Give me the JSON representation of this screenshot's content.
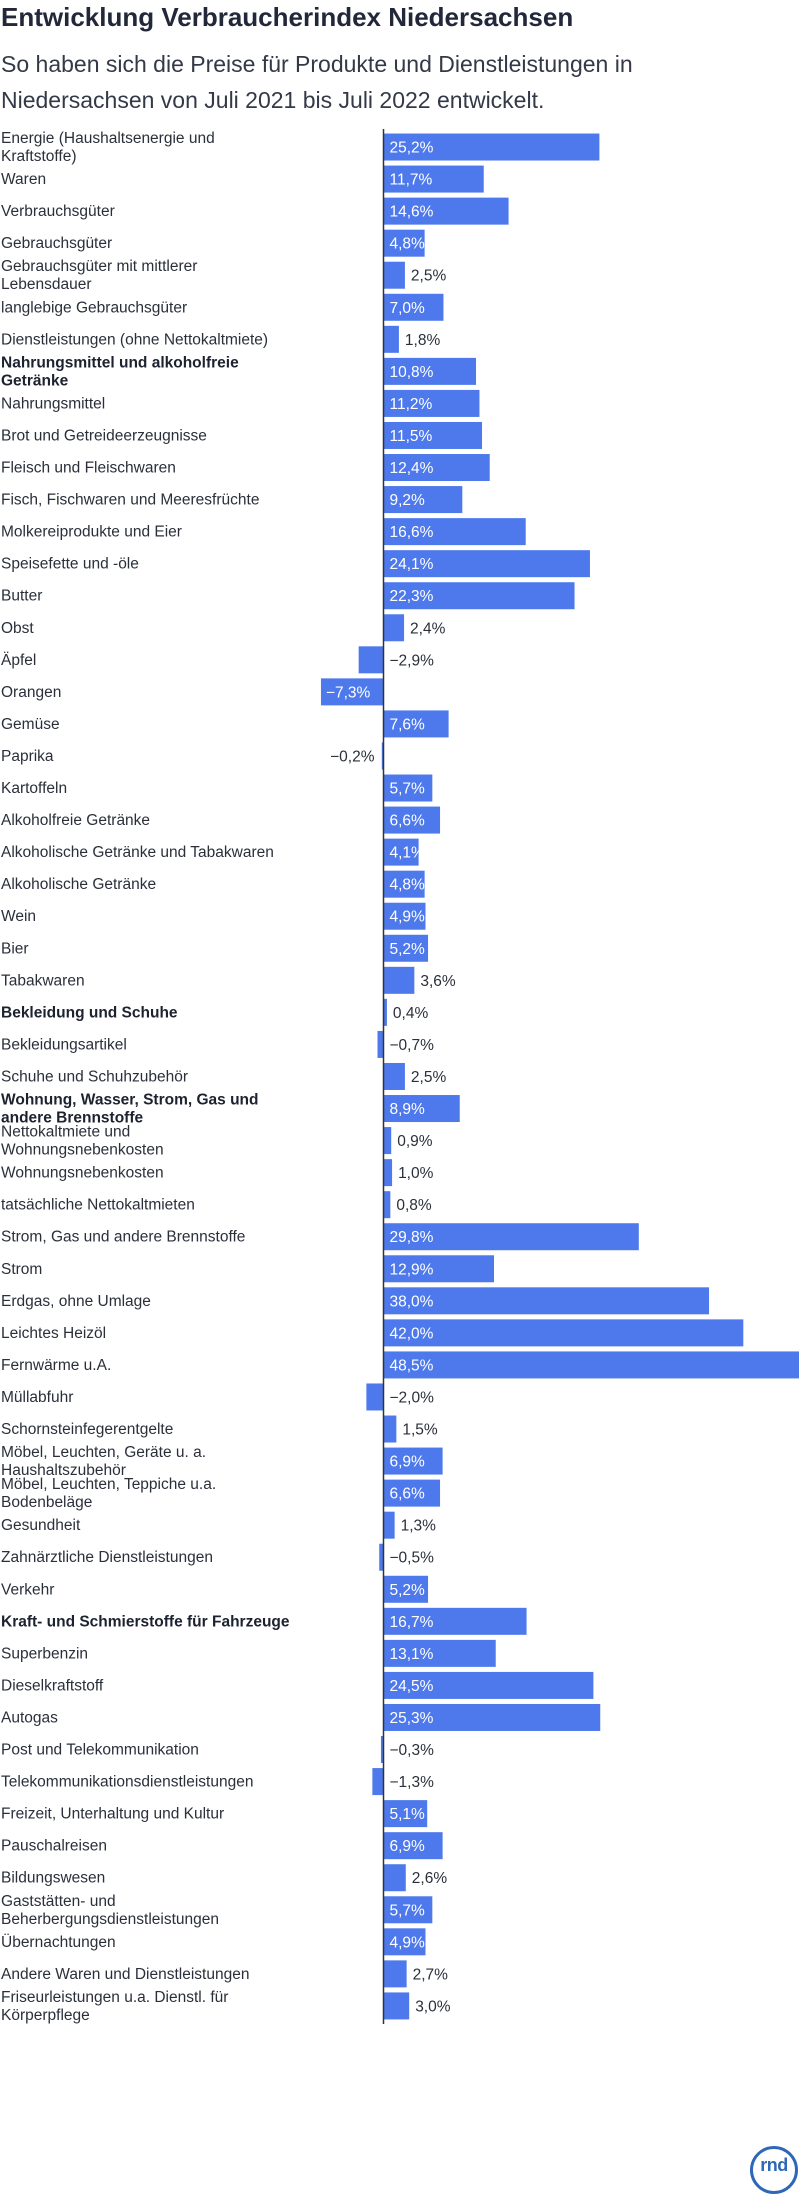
{
  "title": "Entwicklung Verbraucherindex Niedersachsen",
  "subtitle": "So haben sich die Preise für Produkte und Dienstleistungen in Niedersachsen von Juli 2021 bis Juli 2022 entwickelt.",
  "logo": "rnd",
  "colors": {
    "bar": "#4d79ec",
    "axis": "#333333",
    "logo": "#2f67b8"
  },
  "chart_data": {
    "type": "bar",
    "orientation": "horizontal",
    "unit": "%",
    "xlim": [
      -9.5,
      48.5
    ],
    "categories": [
      {
        "label": [
          "Energie (Haushaltsenergie und",
          "Kraftstoffe)"
        ],
        "value": 25.2,
        "display": "25,2%"
      },
      {
        "label": [
          "Waren"
        ],
        "value": 11.7,
        "display": "11,7%"
      },
      {
        "label": [
          "Verbrauchsgüter"
        ],
        "value": 14.6,
        "display": "14,6%"
      },
      {
        "label": [
          "Gebrauchsgüter"
        ],
        "value": 4.8,
        "display": "4,8%"
      },
      {
        "label": [
          "Gebrauchsgüter mit mittlerer",
          "Lebensdauer"
        ],
        "value": 2.5,
        "display": "2,5%"
      },
      {
        "label": [
          "langlebige Gebrauchsgüter"
        ],
        "value": 7.0,
        "display": "7,0%"
      },
      {
        "label": [
          "Dienstleistungen (ohne Nettokaltmiete)"
        ],
        "value": 1.8,
        "display": "1,8%"
      },
      {
        "label": [
          "Nahrungsmittel und alkoholfreie",
          "Getränke"
        ],
        "value": 10.8,
        "display": "10,8%",
        "bold": true
      },
      {
        "label": [
          "Nahrungsmittel"
        ],
        "value": 11.2,
        "display": "11,2%"
      },
      {
        "label": [
          "Brot und Getreideerzeugnisse"
        ],
        "value": 11.5,
        "display": "11,5%"
      },
      {
        "label": [
          "Fleisch und Fleischwaren"
        ],
        "value": 12.4,
        "display": "12,4%"
      },
      {
        "label": [
          "Fisch, Fischwaren und Meeresfrüchte"
        ],
        "value": 9.2,
        "display": "9,2%"
      },
      {
        "label": [
          "Molkereiprodukte und Eier"
        ],
        "value": 16.6,
        "display": "16,6%"
      },
      {
        "label": [
          "Speisefette und -öle"
        ],
        "value": 24.1,
        "display": "24,1%"
      },
      {
        "label": [
          "Butter"
        ],
        "value": 22.3,
        "display": "22,3%"
      },
      {
        "label": [
          "Obst"
        ],
        "value": 2.4,
        "display": "2,4%"
      },
      {
        "label": [
          "Äpfel"
        ],
        "value": -2.9,
        "display": "−2,9%"
      },
      {
        "label": [
          "Orangen"
        ],
        "value": -7.3,
        "display": "−7,3%"
      },
      {
        "label": [
          "Gemüse"
        ],
        "value": 7.6,
        "display": "7,6%"
      },
      {
        "label": [
          "Paprika"
        ],
        "value": -0.2,
        "display": "−0,2%"
      },
      {
        "label": [
          "Kartoffeln"
        ],
        "value": 5.7,
        "display": "5,7%"
      },
      {
        "label": [
          "Alkoholfreie Getränke"
        ],
        "value": 6.6,
        "display": "6,6%"
      },
      {
        "label": [
          "Alkoholische Getränke und Tabakwaren"
        ],
        "value": 4.1,
        "display": "4,1%"
      },
      {
        "label": [
          "Alkoholische Getränke"
        ],
        "value": 4.8,
        "display": "4,8%"
      },
      {
        "label": [
          "Wein"
        ],
        "value": 4.9,
        "display": "4,9%"
      },
      {
        "label": [
          "Bier"
        ],
        "value": 5.2,
        "display": "5,2%"
      },
      {
        "label": [
          "Tabakwaren"
        ],
        "value": 3.6,
        "display": "3,6%"
      },
      {
        "label": [
          "Bekleidung und Schuhe"
        ],
        "value": 0.4,
        "display": "0,4%",
        "bold": true
      },
      {
        "label": [
          "Bekleidungsartikel"
        ],
        "value": -0.7,
        "display": "−0,7%"
      },
      {
        "label": [
          "Schuhe und Schuhzubehör"
        ],
        "value": 2.5,
        "display": "2,5%"
      },
      {
        "label": [
          "Wohnung, Wasser, Strom, Gas und",
          "andere Brennstoffe"
        ],
        "value": 8.9,
        "display": "8,9%",
        "bold": true
      },
      {
        "label": [
          "Nettokaltmiete und",
          "Wohnungsnebenkosten"
        ],
        "value": 0.9,
        "display": "0,9%"
      },
      {
        "label": [
          "Wohnungsnebenkosten"
        ],
        "value": 1.0,
        "display": "1,0%"
      },
      {
        "label": [
          "tatsächliche Nettokaltmieten"
        ],
        "value": 0.8,
        "display": "0,8%"
      },
      {
        "label": [
          "Strom, Gas und andere Brennstoffe"
        ],
        "value": 29.8,
        "display": "29,8%"
      },
      {
        "label": [
          "Strom"
        ],
        "value": 12.9,
        "display": "12,9%"
      },
      {
        "label": [
          "Erdgas, ohne Umlage"
        ],
        "value": 38.0,
        "display": "38,0%"
      },
      {
        "label": [
          "Leichtes Heizöl"
        ],
        "value": 42.0,
        "display": "42,0%"
      },
      {
        "label": [
          "Fernwärme u.A."
        ],
        "value": 48.5,
        "display": "48,5%"
      },
      {
        "label": [
          "Müllabfuhr"
        ],
        "value": -2.0,
        "display": "−2,0%"
      },
      {
        "label": [
          "Schornsteinfegerentgelte"
        ],
        "value": 1.5,
        "display": "1,5%"
      },
      {
        "label": [
          "Möbel, Leuchten, Geräte u. a.",
          "Haushaltszubehör"
        ],
        "value": 6.9,
        "display": "6,9%"
      },
      {
        "label": [
          "Möbel, Leuchten, Teppiche u.a.",
          "Bodenbeläge"
        ],
        "value": 6.6,
        "display": "6,6%"
      },
      {
        "label": [
          "Gesundheit"
        ],
        "value": 1.3,
        "display": "1,3%"
      },
      {
        "label": [
          "Zahnärztliche Dienstleistungen"
        ],
        "value": -0.5,
        "display": "−0,5%"
      },
      {
        "label": [
          "Verkehr"
        ],
        "value": 5.2,
        "display": "5,2%"
      },
      {
        "label": [
          "Kraft- und Schmierstoffe für Fahrzeuge"
        ],
        "value": 16.7,
        "display": "16,7%",
        "bold": true
      },
      {
        "label": [
          "Superbenzin"
        ],
        "value": 13.1,
        "display": "13,1%"
      },
      {
        "label": [
          "Dieselkraftstoff"
        ],
        "value": 24.5,
        "display": "24,5%"
      },
      {
        "label": [
          "Autogas"
        ],
        "value": 25.3,
        "display": "25,3%"
      },
      {
        "label": [
          "Post und Telekommunikation"
        ],
        "value": -0.3,
        "display": "−0,3%"
      },
      {
        "label": [
          "Telekommunikationsdienstleistungen"
        ],
        "value": -1.3,
        "display": "−1,3%"
      },
      {
        "label": [
          "Freizeit, Unterhaltung und Kultur"
        ],
        "value": 5.1,
        "display": "5,1%"
      },
      {
        "label": [
          "Pauschalreisen"
        ],
        "value": 6.9,
        "display": "6,9%"
      },
      {
        "label": [
          "Bildungswesen"
        ],
        "value": 2.6,
        "display": "2,6%"
      },
      {
        "label": [
          "Gaststätten- und",
          "Beherbergungsdienstleistungen"
        ],
        "value": 5.7,
        "display": "5,7%"
      },
      {
        "label": [
          "Übernachtungen"
        ],
        "value": 4.9,
        "display": "4,9%"
      },
      {
        "label": [
          "Andere Waren und Dienstleistungen"
        ],
        "value": 2.7,
        "display": "2,7%"
      },
      {
        "label": [
          "Friseurleistungen u.a. Dienstl. für",
          "Körperpflege"
        ],
        "value": 3.0,
        "display": "3,0%"
      }
    ]
  }
}
